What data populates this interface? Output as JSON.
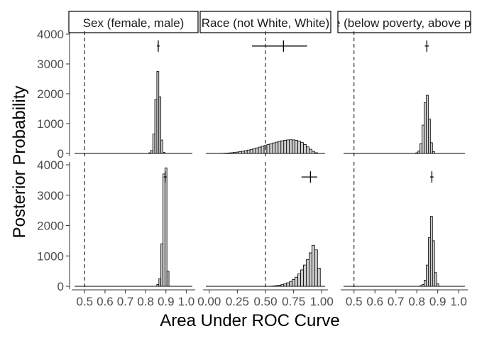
{
  "chart_data": {
    "type": "bar",
    "xlabel": "Area Under ROC Curve",
    "ylabel": "Posterior Probability",
    "ylim": [
      0,
      4000
    ],
    "y_ticks": [
      0,
      1000,
      2000,
      3000,
      4000
    ],
    "grid": false,
    "reference_line_style": "dashed",
    "colors": {
      "bar_fill": "#cccccc",
      "bar_stroke": "#000000",
      "strip_fill": "#ffffff",
      "axis": "#333333"
    },
    "panels": [
      {
        "strip": "Sex (female, male)",
        "xlim": [
          0.45,
          1.03
        ],
        "x_ticks": [
          0.5,
          0.6,
          0.7,
          0.8,
          0.9,
          1.0
        ],
        "x_tick_labels": [
          "0.5",
          "0.6",
          "0.7",
          "0.8",
          "0.9",
          "1.0"
        ],
        "ref_line": 0.5,
        "rows": [
          {
            "bin_width": 0.01,
            "x": [
              0.82,
              0.83,
              0.84,
              0.85,
              0.86,
              0.87,
              0.88,
              0.89
            ],
            "values": [
              20,
              100,
              650,
              1800,
              2750,
              1900,
              450,
              40
            ],
            "marker": {
              "x": 0.862,
              "y": 3600,
              "lo": 0.855,
              "hi": 0.869
            }
          },
          {
            "bin_width": 0.01,
            "x": [
              0.86,
              0.87,
              0.88,
              0.89,
              0.9,
              0.91
            ],
            "values": [
              60,
              250,
              1400,
              3700,
              3900,
              500
            ],
            "marker": {
              "x": 0.896,
              "y": 3600,
              "lo": 0.889,
              "hi": 0.903
            }
          }
        ]
      },
      {
        "strip": "Race (not White, White)",
        "xlim": [
          -0.03,
          1.03
        ],
        "x_ticks": [
          0.0,
          0.25,
          0.5,
          0.75,
          1.0
        ],
        "x_tick_labels": [
          "0.00",
          "0.25",
          "0.50",
          "0.75",
          "1.00"
        ],
        "ref_line": 0.5,
        "rows": [
          {
            "bin_width": 0.025,
            "x": [
              0.1,
              0.125,
              0.15,
              0.175,
              0.2,
              0.225,
              0.25,
              0.275,
              0.3,
              0.325,
              0.35,
              0.375,
              0.4,
              0.425,
              0.45,
              0.475,
              0.5,
              0.525,
              0.55,
              0.575,
              0.6,
              0.625,
              0.65,
              0.675,
              0.7,
              0.725,
              0.75,
              0.775,
              0.8,
              0.825,
              0.85,
              0.875,
              0.9,
              0.925,
              0.95
            ],
            "values": [
              3,
              6,
              10,
              16,
              24,
              34,
              46,
              60,
              76,
              94,
              114,
              136,
              160,
              186,
              213,
              240,
              268,
              297,
              326,
              354,
              380,
              404,
              425,
              442,
              454,
              459,
              455,
              440,
              410,
              365,
              300,
              220,
              140,
              70,
              25
            ],
            "marker": {
              "x": 0.66,
              "y": 3600,
              "lo": 0.38,
              "hi": 0.87
            }
          },
          {
            "bin_width": 0.025,
            "x": [
              0.55,
              0.575,
              0.6,
              0.625,
              0.65,
              0.675,
              0.7,
              0.725,
              0.75,
              0.775,
              0.8,
              0.825,
              0.85,
              0.875,
              0.9,
              0.925,
              0.95,
              0.975
            ],
            "values": [
              5,
              12,
              22,
              35,
              55,
              80,
              115,
              160,
              220,
              300,
              410,
              540,
              700,
              880,
              1100,
              1350,
              1200,
              600
            ],
            "marker": {
              "x": 0.9,
              "y": 3600,
              "lo": 0.82,
              "hi": 0.96
            }
          }
        ]
      },
      {
        "strip": "Income (below poverty, above poverty)",
        "xlim": [
          0.45,
          1.03
        ],
        "x_ticks": [
          0.5,
          0.6,
          0.7,
          0.8,
          0.9,
          1.0
        ],
        "x_tick_labels": [
          "0.5",
          "0.6",
          "0.7",
          "0.8",
          "0.9",
          "1.0"
        ],
        "ref_line": 0.5,
        "rows": [
          {
            "bin_width": 0.01,
            "x": [
              0.8,
              0.81,
              0.82,
              0.83,
              0.84,
              0.85,
              0.86,
              0.87,
              0.88
            ],
            "values": [
              20,
              80,
              330,
              950,
              1700,
              1950,
              1150,
              360,
              60
            ],
            "marker": {
              "x": 0.848,
              "y": 3600,
              "lo": 0.838,
              "hi": 0.858
            }
          },
          {
            "bin_width": 0.01,
            "x": [
              0.82,
              0.83,
              0.84,
              0.85,
              0.86,
              0.87,
              0.88,
              0.89,
              0.9
            ],
            "values": [
              20,
              60,
              200,
              700,
              1600,
              2300,
              1500,
              450,
              80
            ],
            "marker": {
              "x": 0.872,
              "y": 3600,
              "lo": 0.864,
              "hi": 0.88
            }
          }
        ]
      }
    ]
  }
}
